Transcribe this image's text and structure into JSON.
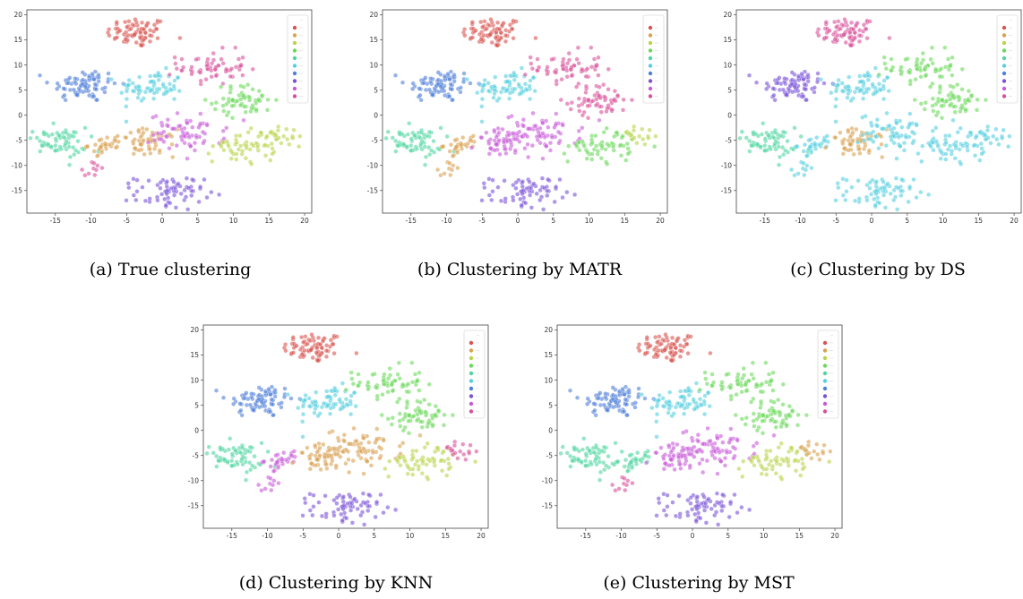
{
  "figure": {
    "captions": [
      "(a) True clustering",
      "(b) Clustering by MATR",
      "(c) Clustering by DS",
      "(d) Clustering by KNN",
      "(e) Clustering by MST"
    ],
    "palette": [
      "#d9534f",
      "#d9a050",
      "#b9d448",
      "#6bd85a",
      "#4fd6a0",
      "#55cfe0",
      "#4f7fd8",
      "#7a52d8",
      "#c85ad8",
      "#d8509a"
    ],
    "legend_title": "..."
  },
  "chart_data": [
    {
      "type": "scatter",
      "title": "",
      "xlabel": "",
      "ylabel": "",
      "xlim": [
        -19,
        21
      ],
      "ylim": [
        -19.5,
        21
      ],
      "xticks": [
        -15,
        -10,
        -5,
        0,
        5,
        10,
        15,
        20
      ],
      "yticks": [
        -15,
        -10,
        -5,
        0,
        5,
        10,
        15,
        20
      ],
      "legend": "top-right",
      "clusters": [
        {
          "x": -3.5,
          "y": 16.5,
          "count": 75
        },
        {
          "x": -11,
          "y": 6,
          "count": 80
        },
        {
          "x": -1.5,
          "y": 5.5,
          "count": 70
        },
        {
          "x": 7,
          "y": 9.5,
          "count": 60
        },
        {
          "x": 11.5,
          "y": 3,
          "count": 60
        },
        {
          "x": -15,
          "y": -5.5,
          "count": 65
        },
        {
          "x": -8,
          "y": -6,
          "count": 30
        },
        {
          "x": -2,
          "y": -5.5,
          "count": 55
        },
        {
          "x": 3.5,
          "y": -3.5,
          "count": 70
        },
        {
          "x": 12,
          "y": -6,
          "count": 60
        },
        {
          "x": 1,
          "y": -15.5,
          "count": 70
        },
        {
          "x": 17,
          "y": -4,
          "count": 18
        },
        {
          "x": -10,
          "y": -11,
          "count": 10
        }
      ],
      "assignments": [
        0,
        6,
        5,
        9,
        3,
        4,
        1,
        1,
        8,
        2,
        7,
        2,
        9
      ]
    },
    {
      "type": "scatter",
      "title": "",
      "xlabel": "",
      "ylabel": "",
      "xlim": [
        -19,
        21
      ],
      "ylim": [
        -19.5,
        21
      ],
      "xticks": [
        -15,
        -10,
        -5,
        0,
        5,
        10,
        15,
        20
      ],
      "yticks": [
        -15,
        -10,
        -5,
        0,
        5,
        10,
        15,
        20
      ],
      "legend": "top-right",
      "clusters": [
        {
          "x": -3.5,
          "y": 16.5,
          "count": 75
        },
        {
          "x": -11,
          "y": 6,
          "count": 80
        },
        {
          "x": -1.5,
          "y": 5.5,
          "count": 70
        },
        {
          "x": 7,
          "y": 9.5,
          "count": 60
        },
        {
          "x": 11.5,
          "y": 3,
          "count": 60
        },
        {
          "x": -15,
          "y": -5.5,
          "count": 65
        },
        {
          "x": -8,
          "y": -6,
          "count": 30
        },
        {
          "x": -2,
          "y": -5.5,
          "count": 55
        },
        {
          "x": 3.5,
          "y": -3.5,
          "count": 70
        },
        {
          "x": 12,
          "y": -6,
          "count": 60
        },
        {
          "x": 1,
          "y": -15.5,
          "count": 70
        },
        {
          "x": 17,
          "y": -4,
          "count": 18
        },
        {
          "x": -10,
          "y": -11,
          "count": 10
        }
      ],
      "assignments": [
        0,
        6,
        5,
        9,
        9,
        4,
        1,
        8,
        8,
        3,
        7,
        2,
        1
      ]
    },
    {
      "type": "scatter",
      "title": "",
      "xlabel": "",
      "ylabel": "",
      "xlim": [
        -19,
        21
      ],
      "ylim": [
        -19.5,
        21
      ],
      "xticks": [
        -15,
        -10,
        -5,
        0,
        5,
        10,
        15,
        20
      ],
      "yticks": [
        -15,
        -10,
        -5,
        0,
        5,
        10,
        15,
        20
      ],
      "legend": "top-right",
      "clusters": [
        {
          "x": -3.5,
          "y": 16.5,
          "count": 75
        },
        {
          "x": -11,
          "y": 6,
          "count": 80
        },
        {
          "x": -1.5,
          "y": 5.5,
          "count": 70
        },
        {
          "x": 7,
          "y": 9.5,
          "count": 60
        },
        {
          "x": 11.5,
          "y": 3,
          "count": 60
        },
        {
          "x": -15,
          "y": -5.5,
          "count": 65
        },
        {
          "x": -8,
          "y": -6,
          "count": 30
        },
        {
          "x": -2,
          "y": -5.5,
          "count": 55
        },
        {
          "x": 3.5,
          "y": -3.5,
          "count": 70
        },
        {
          "x": 12,
          "y": -6,
          "count": 60
        },
        {
          "x": 1,
          "y": -15.5,
          "count": 70
        },
        {
          "x": 17,
          "y": -4,
          "count": 18
        },
        {
          "x": -10,
          "y": -11,
          "count": 10
        }
      ],
      "assignments": [
        9,
        7,
        5,
        3,
        3,
        4,
        5,
        1,
        5,
        5,
        5,
        5,
        5
      ]
    },
    {
      "type": "scatter",
      "title": "",
      "xlabel": "",
      "ylabel": "",
      "xlim": [
        -19,
        21
      ],
      "ylim": [
        -19.5,
        21
      ],
      "xticks": [
        -15,
        -10,
        -5,
        0,
        5,
        10,
        15,
        20
      ],
      "yticks": [
        -15,
        -10,
        -5,
        0,
        5,
        10,
        15,
        20
      ],
      "legend": "top-right",
      "clusters": [
        {
          "x": -3.5,
          "y": 16.5,
          "count": 75
        },
        {
          "x": -11,
          "y": 6,
          "count": 80
        },
        {
          "x": -1.5,
          "y": 5.5,
          "count": 70
        },
        {
          "x": 7,
          "y": 9.5,
          "count": 60
        },
        {
          "x": 11.5,
          "y": 3,
          "count": 60
        },
        {
          "x": -15,
          "y": -5.5,
          "count": 65
        },
        {
          "x": -8,
          "y": -6,
          "count": 30
        },
        {
          "x": -2,
          "y": -5.5,
          "count": 55
        },
        {
          "x": 3.5,
          "y": -3.5,
          "count": 70
        },
        {
          "x": 12,
          "y": -6,
          "count": 60
        },
        {
          "x": 1,
          "y": -15.5,
          "count": 70
        },
        {
          "x": 17,
          "y": -4,
          "count": 18
        },
        {
          "x": -10,
          "y": -11,
          "count": 10
        }
      ],
      "assignments": [
        0,
        6,
        5,
        3,
        3,
        4,
        8,
        1,
        1,
        2,
        7,
        9,
        8
      ]
    },
    {
      "type": "scatter",
      "title": "",
      "xlabel": "",
      "ylabel": "",
      "xlim": [
        -19,
        21
      ],
      "ylim": [
        -19.5,
        21
      ],
      "xticks": [
        -15,
        -10,
        -5,
        0,
        5,
        10,
        15,
        20
      ],
      "yticks": [
        -15,
        -10,
        -5,
        0,
        5,
        10,
        15,
        20
      ],
      "legend": "top-right",
      "clusters": [
        {
          "x": -3.5,
          "y": 16.5,
          "count": 75
        },
        {
          "x": -11,
          "y": 6,
          "count": 80
        },
        {
          "x": -1.5,
          "y": 5.5,
          "count": 70
        },
        {
          "x": 7,
          "y": 9.5,
          "count": 60
        },
        {
          "x": 11.5,
          "y": 3,
          "count": 60
        },
        {
          "x": -15,
          "y": -5.5,
          "count": 65
        },
        {
          "x": -8,
          "y": -6,
          "count": 30
        },
        {
          "x": -2,
          "y": -5.5,
          "count": 55
        },
        {
          "x": 3.5,
          "y": -3.5,
          "count": 70
        },
        {
          "x": 12,
          "y": -6,
          "count": 60
        },
        {
          "x": 1,
          "y": -15.5,
          "count": 70
        },
        {
          "x": 17,
          "y": -4,
          "count": 18
        },
        {
          "x": -10,
          "y": -11,
          "count": 10
        }
      ],
      "assignments": [
        0,
        6,
        5,
        3,
        3,
        4,
        4,
        8,
        8,
        2,
        7,
        1,
        9
      ]
    }
  ]
}
